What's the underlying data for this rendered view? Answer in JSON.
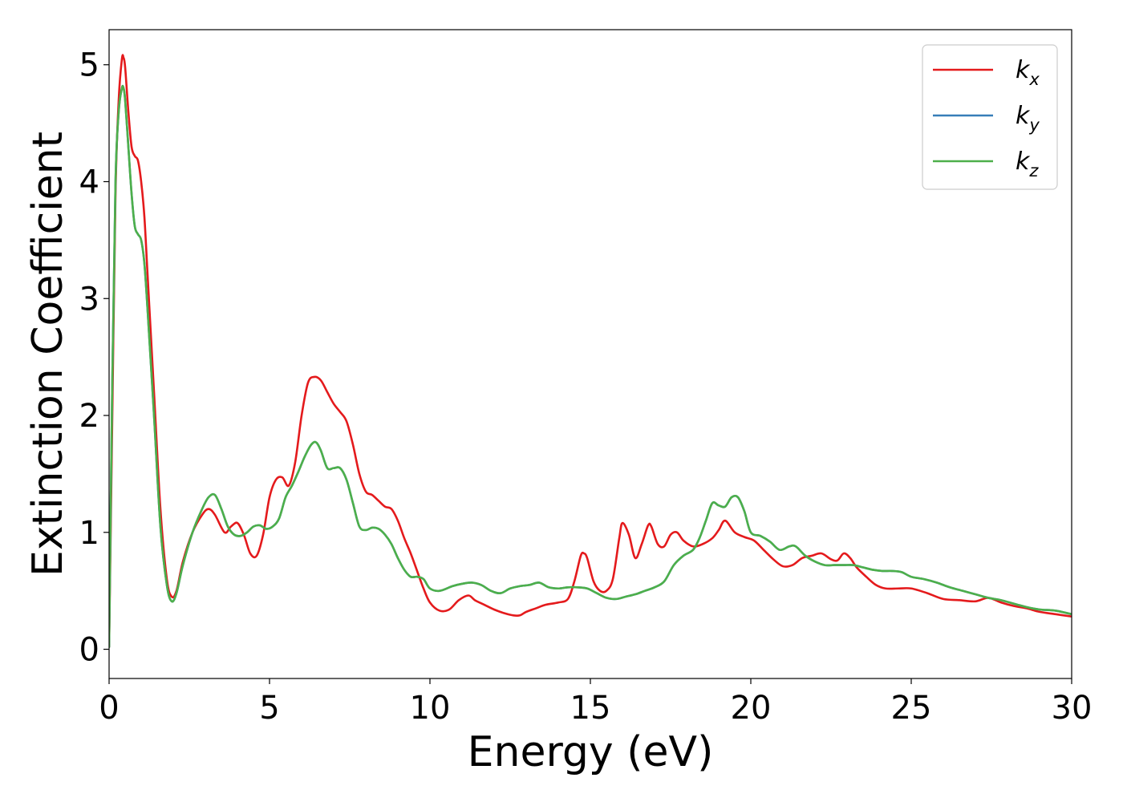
{
  "chart_data": {
    "type": "line",
    "xlabel": "Energy (eV)",
    "ylabel": "Extinction Coefficient",
    "xlim": [
      0,
      30
    ],
    "ylim": [
      -0.25,
      5.3
    ],
    "xticks": [
      0,
      5,
      10,
      15,
      20,
      25,
      30
    ],
    "yticks": [
      0,
      1,
      2,
      3,
      4,
      5
    ],
    "grid": false,
    "legend_position": "top-right",
    "series": [
      {
        "name": "k_x",
        "label_base": "k",
        "label_sub": "x",
        "color": "#e41a1c",
        "x": [
          0,
          0.1,
          0.2,
          0.3,
          0.4,
          0.45,
          0.5,
          0.6,
          0.7,
          0.8,
          0.9,
          1.0,
          1.1,
          1.2,
          1.4,
          1.6,
          1.8,
          1.95,
          2.1,
          2.3,
          2.6,
          2.9,
          3.1,
          3.3,
          3.6,
          3.8,
          4.0,
          4.2,
          4.4,
          4.6,
          4.8,
          5.0,
          5.2,
          5.4,
          5.6,
          5.8,
          6.0,
          6.2,
          6.4,
          6.6,
          6.8,
          7.0,
          7.2,
          7.4,
          7.6,
          7.8,
          8.0,
          8.2,
          8.4,
          8.6,
          8.8,
          9.0,
          9.2,
          9.4,
          9.6,
          9.8,
          10.0,
          10.3,
          10.6,
          10.9,
          11.2,
          11.4,
          11.7,
          12.0,
          12.3,
          12.6,
          12.8,
          13.0,
          13.3,
          13.6,
          14.0,
          14.3,
          14.5,
          14.7,
          14.8,
          14.9,
          15.1,
          15.3,
          15.5,
          15.7,
          15.9,
          16.0,
          16.2,
          16.4,
          16.6,
          16.8,
          16.9,
          17.1,
          17.3,
          17.5,
          17.7,
          17.9,
          18.2,
          18.5,
          18.8,
          19.0,
          19.2,
          19.5,
          19.8,
          20.1,
          20.4,
          20.7,
          21.0,
          21.3,
          21.6,
          21.9,
          22.2,
          22.5,
          22.7,
          22.9,
          23.1,
          23.3,
          23.6,
          23.9,
          24.2,
          24.6,
          25.0,
          25.5,
          26.0,
          26.5,
          27.0,
          27.4,
          27.8,
          28.2,
          28.6,
          29.0,
          29.5,
          30.0
        ],
        "values": [
          0.02,
          2.0,
          3.9,
          4.7,
          5.05,
          5.06,
          4.98,
          4.6,
          4.3,
          4.22,
          4.18,
          4.0,
          3.7,
          3.2,
          2.2,
          1.2,
          0.6,
          0.45,
          0.5,
          0.75,
          1.0,
          1.15,
          1.2,
          1.15,
          1.0,
          1.05,
          1.08,
          0.98,
          0.82,
          0.8,
          0.98,
          1.3,
          1.45,
          1.47,
          1.4,
          1.6,
          2.0,
          2.28,
          2.33,
          2.3,
          2.2,
          2.1,
          2.03,
          1.95,
          1.75,
          1.5,
          1.35,
          1.32,
          1.27,
          1.22,
          1.2,
          1.1,
          0.95,
          0.82,
          0.67,
          0.52,
          0.4,
          0.33,
          0.34,
          0.42,
          0.46,
          0.42,
          0.38,
          0.34,
          0.31,
          0.29,
          0.29,
          0.32,
          0.35,
          0.38,
          0.4,
          0.43,
          0.58,
          0.8,
          0.82,
          0.78,
          0.58,
          0.5,
          0.5,
          0.6,
          0.95,
          1.08,
          0.98,
          0.78,
          0.9,
          1.06,
          1.05,
          0.9,
          0.88,
          0.98,
          1.0,
          0.93,
          0.88,
          0.9,
          0.95,
          1.02,
          1.1,
          1.0,
          0.96,
          0.93,
          0.85,
          0.77,
          0.71,
          0.72,
          0.78,
          0.8,
          0.82,
          0.77,
          0.76,
          0.82,
          0.78,
          0.7,
          0.62,
          0.55,
          0.52,
          0.52,
          0.52,
          0.48,
          0.43,
          0.42,
          0.41,
          0.44,
          0.4,
          0.37,
          0.35,
          0.32,
          0.3,
          0.28
        ]
      },
      {
        "name": "k_y",
        "label_base": "k",
        "label_sub": "y",
        "color": "#377eb8",
        "x": [
          0,
          0.1,
          0.2,
          0.3,
          0.4,
          0.45,
          0.5,
          0.6,
          0.7,
          0.8,
          0.9,
          1.0,
          1.1,
          1.2,
          1.4,
          1.6,
          1.8,
          1.95,
          2.1,
          2.3,
          2.6,
          2.9,
          3.1,
          3.3,
          3.5,
          3.7,
          3.9,
          4.1,
          4.3,
          4.5,
          4.7,
          4.9,
          5.1,
          5.3,
          5.5,
          5.7,
          5.9,
          6.1,
          6.3,
          6.45,
          6.6,
          6.8,
          7.0,
          7.2,
          7.4,
          7.6,
          7.8,
          8.0,
          8.2,
          8.4,
          8.6,
          8.8,
          9.0,
          9.2,
          9.4,
          9.6,
          9.8,
          10.0,
          10.3,
          10.7,
          11.0,
          11.3,
          11.6,
          11.9,
          12.2,
          12.5,
          12.8,
          13.1,
          13.4,
          13.7,
          14.0,
          14.3,
          14.6,
          14.9,
          15.2,
          15.5,
          15.8,
          16.1,
          16.4,
          16.7,
          17.0,
          17.3,
          17.6,
          17.9,
          18.2,
          18.4,
          18.6,
          18.8,
          19.0,
          19.2,
          19.4,
          19.6,
          19.8,
          20.0,
          20.3,
          20.6,
          20.9,
          21.2,
          21.4,
          21.7,
          22.0,
          22.3,
          22.6,
          22.9,
          23.2,
          23.5,
          23.8,
          24.1,
          24.4,
          24.7,
          25.0,
          25.4,
          25.8,
          26.2,
          26.6,
          27.0,
          27.4,
          27.8,
          28.2,
          28.6,
          29.0,
          29.5,
          30.0
        ],
        "values": [
          0.02,
          2.3,
          4.0,
          4.6,
          4.8,
          4.8,
          4.7,
          4.3,
          3.9,
          3.62,
          3.55,
          3.5,
          3.3,
          2.9,
          2.0,
          1.05,
          0.55,
          0.41,
          0.48,
          0.72,
          1.0,
          1.2,
          1.3,
          1.32,
          1.2,
          1.05,
          0.98,
          0.97,
          1.0,
          1.05,
          1.06,
          1.03,
          1.05,
          1.12,
          1.3,
          1.4,
          1.52,
          1.65,
          1.75,
          1.77,
          1.7,
          1.55,
          1.55,
          1.55,
          1.45,
          1.25,
          1.05,
          1.02,
          1.04,
          1.03,
          0.98,
          0.9,
          0.78,
          0.68,
          0.62,
          0.62,
          0.6,
          0.52,
          0.5,
          0.54,
          0.56,
          0.57,
          0.55,
          0.5,
          0.48,
          0.52,
          0.54,
          0.55,
          0.57,
          0.53,
          0.52,
          0.53,
          0.53,
          0.52,
          0.48,
          0.44,
          0.43,
          0.45,
          0.47,
          0.5,
          0.53,
          0.58,
          0.72,
          0.8,
          0.85,
          0.95,
          1.1,
          1.25,
          1.23,
          1.22,
          1.3,
          1.3,
          1.18,
          1.0,
          0.97,
          0.92,
          0.85,
          0.88,
          0.88,
          0.8,
          0.75,
          0.72,
          0.72,
          0.72,
          0.72,
          0.7,
          0.68,
          0.67,
          0.67,
          0.66,
          0.62,
          0.6,
          0.57,
          0.53,
          0.5,
          0.47,
          0.44,
          0.42,
          0.39,
          0.36,
          0.34,
          0.33,
          0.3
        ]
      },
      {
        "name": "k_z",
        "label_base": "k",
        "label_sub": "z",
        "color": "#4daf4a",
        "x": [
          0,
          0.1,
          0.2,
          0.3,
          0.4,
          0.45,
          0.5,
          0.6,
          0.7,
          0.8,
          0.9,
          1.0,
          1.1,
          1.2,
          1.4,
          1.6,
          1.8,
          1.95,
          2.1,
          2.3,
          2.6,
          2.9,
          3.1,
          3.3,
          3.5,
          3.7,
          3.9,
          4.1,
          4.3,
          4.5,
          4.7,
          4.9,
          5.1,
          5.3,
          5.5,
          5.7,
          5.9,
          6.1,
          6.3,
          6.45,
          6.6,
          6.8,
          7.0,
          7.2,
          7.4,
          7.6,
          7.8,
          8.0,
          8.2,
          8.4,
          8.6,
          8.8,
          9.0,
          9.2,
          9.4,
          9.6,
          9.8,
          10.0,
          10.3,
          10.7,
          11.0,
          11.3,
          11.6,
          11.9,
          12.2,
          12.5,
          12.8,
          13.1,
          13.4,
          13.7,
          14.0,
          14.3,
          14.6,
          14.9,
          15.2,
          15.5,
          15.8,
          16.1,
          16.4,
          16.7,
          17.0,
          17.3,
          17.6,
          17.9,
          18.2,
          18.4,
          18.6,
          18.8,
          19.0,
          19.2,
          19.4,
          19.6,
          19.8,
          20.0,
          20.3,
          20.6,
          20.9,
          21.2,
          21.4,
          21.7,
          22.0,
          22.3,
          22.6,
          22.9,
          23.2,
          23.5,
          23.8,
          24.1,
          24.4,
          24.7,
          25.0,
          25.4,
          25.8,
          26.2,
          26.6,
          27.0,
          27.4,
          27.8,
          28.2,
          28.6,
          29.0,
          29.5,
          30.0
        ],
        "values": [
          0.02,
          2.3,
          4.0,
          4.6,
          4.8,
          4.8,
          4.7,
          4.3,
          3.9,
          3.62,
          3.55,
          3.5,
          3.3,
          2.9,
          2.0,
          1.05,
          0.55,
          0.41,
          0.48,
          0.72,
          1.0,
          1.2,
          1.3,
          1.32,
          1.2,
          1.05,
          0.98,
          0.97,
          1.0,
          1.05,
          1.06,
          1.03,
          1.05,
          1.12,
          1.3,
          1.4,
          1.52,
          1.65,
          1.75,
          1.77,
          1.7,
          1.55,
          1.55,
          1.55,
          1.45,
          1.25,
          1.05,
          1.02,
          1.04,
          1.03,
          0.98,
          0.9,
          0.78,
          0.68,
          0.62,
          0.62,
          0.6,
          0.52,
          0.5,
          0.54,
          0.56,
          0.57,
          0.55,
          0.5,
          0.48,
          0.52,
          0.54,
          0.55,
          0.57,
          0.53,
          0.52,
          0.53,
          0.53,
          0.52,
          0.48,
          0.44,
          0.43,
          0.45,
          0.47,
          0.5,
          0.53,
          0.58,
          0.72,
          0.8,
          0.85,
          0.95,
          1.1,
          1.25,
          1.23,
          1.22,
          1.3,
          1.3,
          1.18,
          1.0,
          0.97,
          0.92,
          0.85,
          0.88,
          0.88,
          0.8,
          0.75,
          0.72,
          0.72,
          0.72,
          0.72,
          0.7,
          0.68,
          0.67,
          0.67,
          0.66,
          0.62,
          0.6,
          0.57,
          0.53,
          0.5,
          0.47,
          0.44,
          0.42,
          0.39,
          0.36,
          0.34,
          0.33,
          0.3
        ]
      }
    ]
  }
}
